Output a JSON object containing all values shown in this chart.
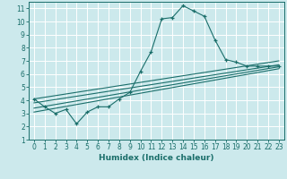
{
  "title": "",
  "xlabel": "Humidex (Indice chaleur)",
  "ylabel": "",
  "bg_color": "#cce9ec",
  "grid_color": "#ffffff",
  "line_color": "#1a6e6a",
  "xlim": [
    -0.5,
    23.5
  ],
  "ylim": [
    1,
    11.5
  ],
  "xticks": [
    0,
    1,
    2,
    3,
    4,
    5,
    6,
    7,
    8,
    9,
    10,
    11,
    12,
    13,
    14,
    15,
    16,
    17,
    18,
    19,
    20,
    21,
    22,
    23
  ],
  "yticks": [
    1,
    2,
    3,
    4,
    5,
    6,
    7,
    8,
    9,
    10,
    11
  ],
  "series_main": {
    "x": [
      0,
      1,
      2,
      3,
      4,
      5,
      6,
      7,
      8,
      9,
      10,
      11,
      12,
      13,
      14,
      15,
      16,
      17,
      18,
      19,
      20,
      21,
      22,
      23
    ],
    "y": [
      4.1,
      3.5,
      3.0,
      3.3,
      2.2,
      3.1,
      3.5,
      3.5,
      4.1,
      4.6,
      6.2,
      7.7,
      10.2,
      10.3,
      11.2,
      10.8,
      10.4,
      8.6,
      7.1,
      6.9,
      6.6,
      6.6,
      6.6,
      6.6
    ]
  },
  "series_lines": [
    {
      "x0": 0,
      "y0": 4.1,
      "x1": 23,
      "y1": 7.0
    },
    {
      "x0": 0,
      "y0": 3.8,
      "x1": 23,
      "y1": 6.7
    },
    {
      "x0": 0,
      "y0": 3.4,
      "x1": 23,
      "y1": 6.55
    },
    {
      "x0": 0,
      "y0": 3.1,
      "x1": 23,
      "y1": 6.4
    }
  ]
}
